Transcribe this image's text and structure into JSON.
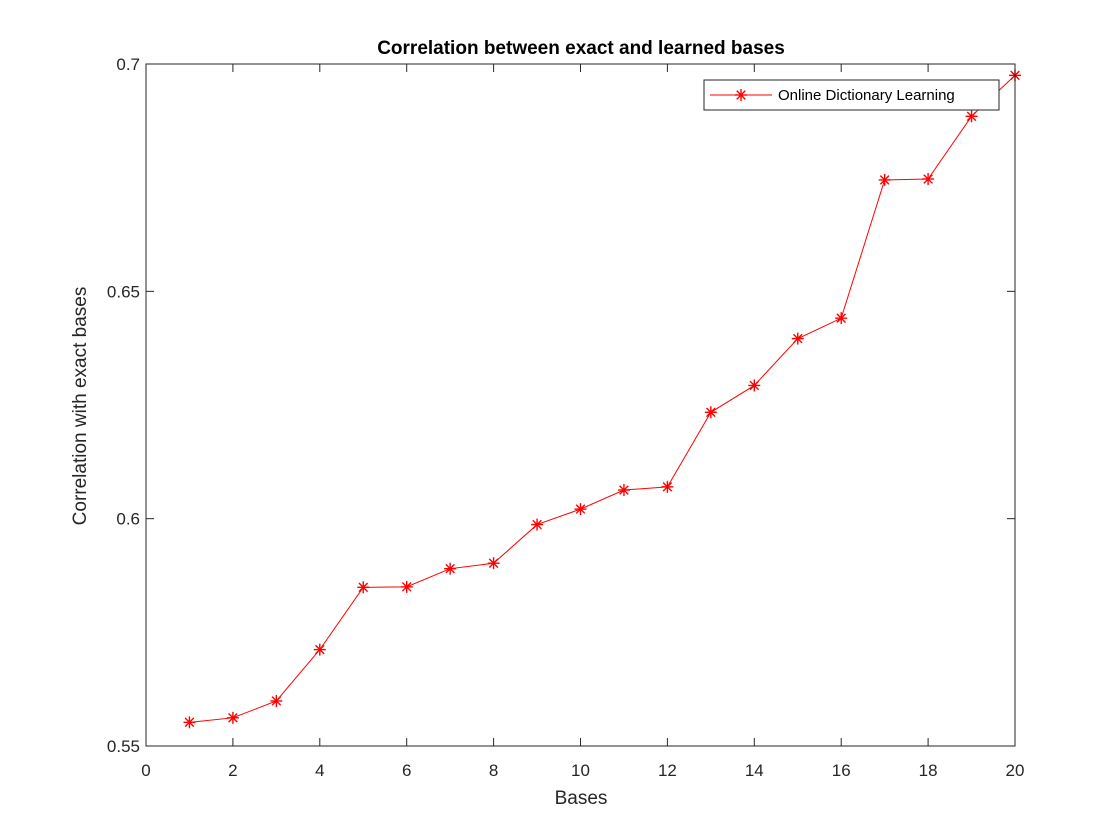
{
  "chart_data": {
    "type": "line",
    "title": "Correlation between exact and learned bases",
    "xlabel": "Bases",
    "ylabel": "Correlation with exact bases",
    "xlim": [
      0,
      20
    ],
    "ylim": [
      0.55,
      0.7
    ],
    "xticks": [
      0,
      2,
      4,
      6,
      8,
      10,
      12,
      14,
      16,
      18,
      20
    ],
    "yticks": [
      0.55,
      0.6,
      0.65,
      0.7
    ],
    "ytick_labels": [
      "0.55",
      "0.6",
      "0.65",
      "0.7"
    ],
    "grid": false,
    "legend_position": "top-right",
    "series": [
      {
        "name": "Online Dictionary Learning",
        "color": "#ff0000",
        "marker": "asterisk",
        "x": [
          1,
          2,
          3,
          4,
          5,
          6,
          7,
          8,
          9,
          10,
          11,
          12,
          13,
          14,
          15,
          16,
          17,
          18,
          19,
          20
        ],
        "y": [
          0.5552,
          0.5562,
          0.5599,
          0.5712,
          0.5849,
          0.585,
          0.589,
          0.5902,
          0.5987,
          0.6021,
          0.6063,
          0.607,
          0.6234,
          0.6293,
          0.6396,
          0.6441,
          0.6745,
          0.6747,
          0.6885,
          0.6975
        ]
      }
    ]
  }
}
